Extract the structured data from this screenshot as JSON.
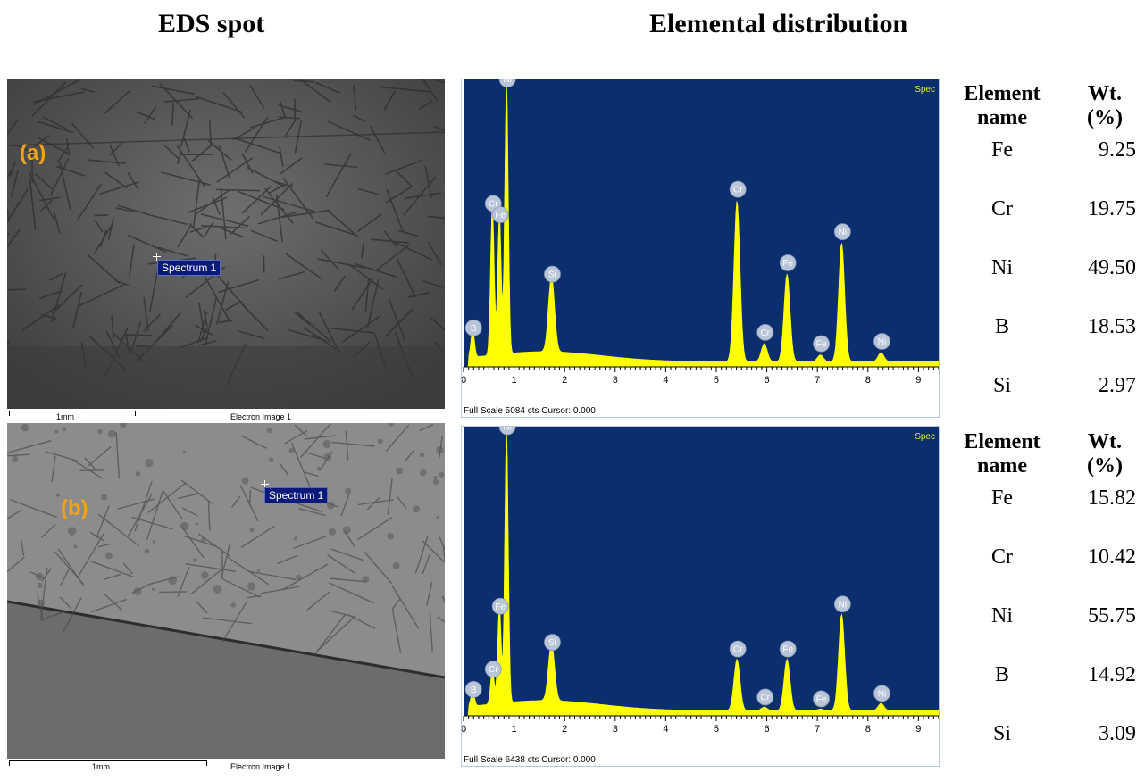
{
  "headings": {
    "left": "EDS spot",
    "right": "Elemental distribution"
  },
  "panels": [
    {
      "label": "(a)",
      "spectrum_tag": "Spectrum 1",
      "scale_text": "1mm",
      "image_caption": "Electron Image 1",
      "spectrum_footer": "Full Scale 5084 cts Cursor: 0.000",
      "spectrum_corner": "Spec",
      "table": {
        "col1_header": [
          "Element",
          "name"
        ],
        "col2_header": [
          "Wt.",
          "(%)"
        ],
        "rows": [
          {
            "element": "Fe",
            "wt": "9.25"
          },
          {
            "element": "Cr",
            "wt": "19.75"
          },
          {
            "element": "Ni",
            "wt": "49.50"
          },
          {
            "element": "B",
            "wt": "18.53"
          },
          {
            "element": "Si",
            "wt": "2.97"
          }
        ]
      }
    },
    {
      "label": "(b)",
      "spectrum_tag": "Spectrum 1",
      "scale_text": "1mm",
      "image_caption": "Electron Image 1",
      "spectrum_footer": "Full Scale 6438 cts Cursor: 0.000",
      "spectrum_corner": "Spec",
      "table": {
        "col1_header": [
          "Element",
          "name"
        ],
        "col2_header": [
          "Wt.",
          "(%)"
        ],
        "rows": [
          {
            "element": "Fe",
            "wt": "15.82"
          },
          {
            "element": "Cr",
            "wt": "10.42"
          },
          {
            "element": "Ni",
            "wt": "55.75"
          },
          {
            "element": "B",
            "wt": "14.92"
          },
          {
            "element": "Si",
            "wt": "3.09"
          }
        ]
      }
    }
  ],
  "chart_data": [
    {
      "type": "line",
      "x_ticks": [
        "0",
        "1",
        "2",
        "3",
        "4",
        "5",
        "6",
        "7",
        "8",
        "9"
      ],
      "xlim": [
        0,
        9.4
      ],
      "ylim": [
        0,
        5084
      ],
      "peaks": [
        {
          "label": "B",
          "x": 0.18,
          "y": 500
        },
        {
          "label": "Cr",
          "x": 0.57,
          "y": 2700
        },
        {
          "label": "Fe",
          "x": 0.71,
          "y": 2500
        },
        {
          "label": "Ni",
          "x": 0.85,
          "y": 4900
        },
        {
          "label": "Si",
          "x": 1.74,
          "y": 1450
        },
        {
          "label": "Cr",
          "x": 5.41,
          "y": 2950
        },
        {
          "label": "Cr",
          "x": 5.95,
          "y": 420
        },
        {
          "label": "Fe",
          "x": 6.4,
          "y": 1650
        },
        {
          "label": "Fe",
          "x": 7.06,
          "y": 220
        },
        {
          "label": "Ni",
          "x": 7.48,
          "y": 2200
        },
        {
          "label": "Ni",
          "x": 8.26,
          "y": 260
        }
      ],
      "colors": {
        "background": "#0a2e6e",
        "fill": "#ffff00"
      }
    },
    {
      "type": "line",
      "x_ticks": [
        "0",
        "1",
        "2",
        "3",
        "4",
        "5",
        "6",
        "7",
        "8",
        "9"
      ],
      "xlim": [
        0,
        9.4
      ],
      "ylim": [
        0,
        6438
      ],
      "peaks": [
        {
          "label": "B",
          "x": 0.18,
          "y": 350
        },
        {
          "label": "Cr",
          "x": 0.57,
          "y": 800
        },
        {
          "label": "Fe",
          "x": 0.71,
          "y": 2200
        },
        {
          "label": "Ni",
          "x": 0.85,
          "y": 6200
        },
        {
          "label": "Si",
          "x": 1.74,
          "y": 1400
        },
        {
          "label": "Cr",
          "x": 5.41,
          "y": 1250
        },
        {
          "label": "Cr",
          "x": 5.95,
          "y": 180
        },
        {
          "label": "Fe",
          "x": 6.4,
          "y": 1250
        },
        {
          "label": "Fe",
          "x": 7.06,
          "y": 140
        },
        {
          "label": "Ni",
          "x": 7.48,
          "y": 2250
        },
        {
          "label": "Ni",
          "x": 8.26,
          "y": 260
        }
      ],
      "colors": {
        "background": "#0a2e6e",
        "fill": "#ffff00"
      }
    }
  ]
}
